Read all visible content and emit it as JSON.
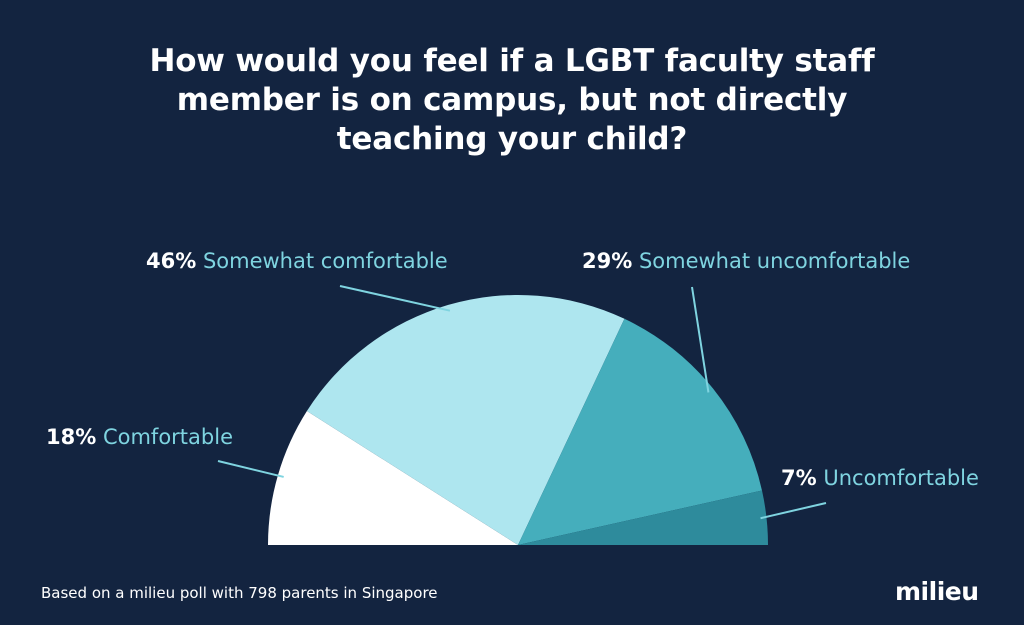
{
  "chart_data": {
    "type": "pie",
    "title": "How would you feel if a LGBT faculty staff\nmember is on campus, but not directly\nteaching your child?",
    "slices": [
      {
        "label": "Comfortable",
        "value": 18,
        "value_label": "18%",
        "color": "#ffffff"
      },
      {
        "label": "Somewhat comfortable",
        "value": 46,
        "value_label": "46%",
        "color": "#aee6ef"
      },
      {
        "label": "Somewhat uncomfortable",
        "value": 29,
        "value_label": "29%",
        "color": "#45aebc"
      },
      {
        "label": "Uncomfortable",
        "value": 7,
        "value_label": "7%",
        "color": "#2e8b9c"
      }
    ],
    "shape": "half-pie",
    "unit": "%"
  },
  "footer": {
    "note": "Based on a milieu poll with 798 parents in Singapore",
    "brand": "milieu"
  },
  "colors": {
    "background": "#132440",
    "label_text": "#7fd4e0",
    "value_text": "#ffffff",
    "leader_line": "#7fd4e0"
  }
}
